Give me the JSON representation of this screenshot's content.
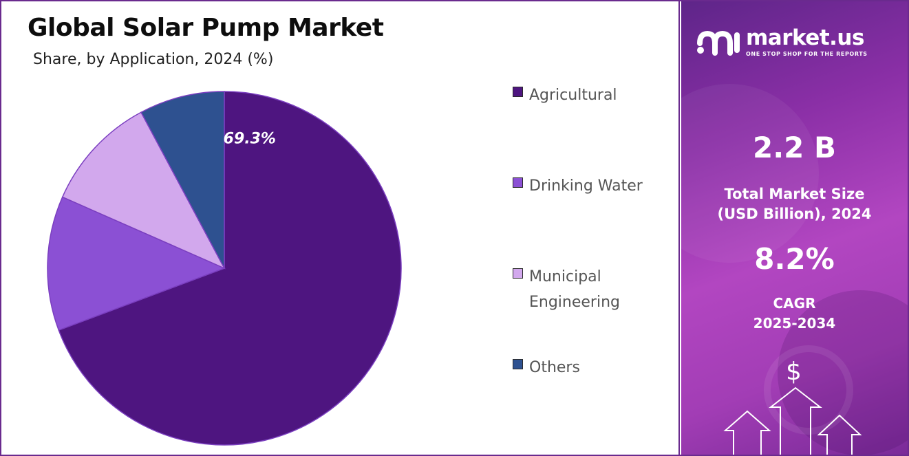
{
  "title": "Global Solar Pump Market",
  "subtitle": "Share, by Application, 2024 (%)",
  "chart_data": {
    "type": "pie",
    "title": "Global Solar Pump Market",
    "subtitle": "Share, by Application, 2024 (%)",
    "unit": "%",
    "categories": [
      "Agricultural",
      "Drinking Water",
      "Municipal Engineering",
      "Others"
    ],
    "legend_labels": [
      "Agricultural",
      "Drinking Water",
      "Municipal\nEngineering",
      "Others"
    ],
    "values": [
      69.3,
      12.3,
      10.6,
      7.8
    ],
    "colors": [
      "#4e1580",
      "#8b50d4",
      "#d2a8ed",
      "#2e5190"
    ],
    "data_labels": [
      "69.3%",
      "",
      "",
      ""
    ],
    "start_angle_deg": 0,
    "direction": "clockwise",
    "legend_position": "right"
  },
  "brand": {
    "name": "market.us",
    "tagline": "ONE STOP SHOP FOR THE REPORTS"
  },
  "stats": {
    "market_size_value": "2.2 B",
    "market_size_label": "Total Market Size\n(USD Billion), 2024",
    "cagr_value": "8.2%",
    "cagr_label": "CAGR\n2025-2034"
  },
  "icons": [
    "market-us-logo-icon",
    "dollar-icon",
    "growth-arrows-icon"
  ],
  "colors": {
    "frame": "#6a2a8e",
    "panel_gradient_start": "#5e2589",
    "panel_gradient_mid": "#b246c1",
    "data_label": "#ffffff"
  }
}
